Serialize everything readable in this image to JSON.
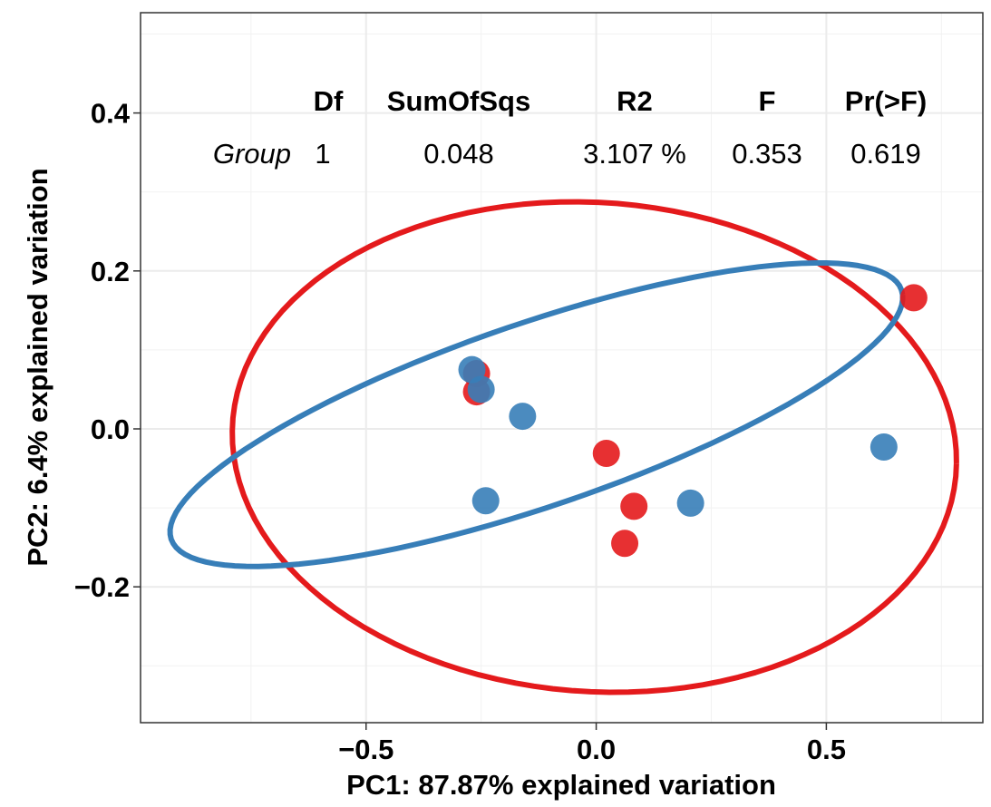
{
  "chart_data": {
    "type": "scatter",
    "xlabel": "PC1: 87.87% explained variation",
    "ylabel": "PC2: 6.4% explained variation",
    "xlim": [
      -0.99,
      0.84
    ],
    "ylim": [
      -0.372,
      0.527
    ],
    "x_ticks": [
      -0.5,
      0.0,
      0.5
    ],
    "y_ticks": [
      -0.2,
      0.0,
      0.2,
      0.4
    ],
    "x_tick_labels": [
      "−0.5",
      "0.0",
      "0.5"
    ],
    "y_tick_labels": [
      "−0.2",
      "0.0",
      "0.2",
      "0.4"
    ],
    "grid": true,
    "series": [
      {
        "color": "#E41A1C",
        "points": [
          {
            "x": -0.26,
            "y": 0.07
          },
          {
            "x": -0.26,
            "y": 0.047
          },
          {
            "x": 0.022,
            "y": -0.031
          },
          {
            "x": 0.082,
            "y": -0.098
          },
          {
            "x": 0.062,
            "y": -0.145
          },
          {
            "x": 0.69,
            "y": 0.166
          }
        ],
        "ellipse": {
          "cx": -0.004,
          "cy": -0.023,
          "rx": 0.787,
          "ry": 0.31,
          "angle_deg": -1.5
        }
      },
      {
        "color": "#377EB8",
        "points": [
          {
            "x": -0.27,
            "y": 0.075
          },
          {
            "x": -0.25,
            "y": 0.05
          },
          {
            "x": -0.16,
            "y": 0.016
          },
          {
            "x": -0.24,
            "y": -0.091
          },
          {
            "x": 0.205,
            "y": -0.094
          },
          {
            "x": 0.625,
            "y": -0.023
          }
        ],
        "ellipse": {
          "cx": -0.13,
          "cy": 0.018,
          "rx": 0.81,
          "ry": 0.12,
          "angle_deg": 10.8
        }
      }
    ],
    "table": {
      "headers": [
        "Df",
        "SumOfSqs",
        "R2",
        "F",
        "Pr(>F)"
      ],
      "row_label": "Group",
      "values": [
        "1",
        "0.048",
        "3.107 %",
        "0.353",
        "0.619"
      ]
    }
  }
}
